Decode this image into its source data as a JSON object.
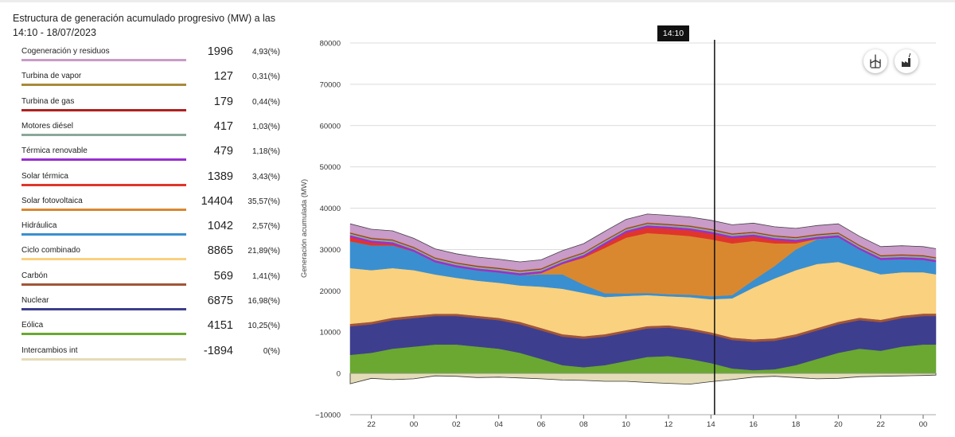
{
  "title": "Estructura de generación acumulado progresivo (MW) a las 14:10 - 18/07/2023",
  "tooltip_time": "14:10",
  "legend": [
    {
      "label": "Cogeneración y residuos",
      "value": "1996",
      "pct": "4,93(%)",
      "color": "#c99bc9"
    },
    {
      "label": "Turbina de vapor",
      "value": "127",
      "pct": "0,31(%)",
      "color": "#a88a3c"
    },
    {
      "label": "Turbina de gas",
      "value": "179",
      "pct": "0,44(%)",
      "color": "#b02020"
    },
    {
      "label": "Motores diésel",
      "value": "417",
      "pct": "1,03(%)",
      "color": "#8aa89a"
    },
    {
      "label": "Térmica renovable",
      "value": "479",
      "pct": "1,18(%)",
      "color": "#9a2fd0"
    },
    {
      "label": "Solar térmica",
      "value": "1389",
      "pct": "3,43(%)",
      "color": "#e0352c"
    },
    {
      "label": "Solar fotovoltaica",
      "value": "14404",
      "pct": "35,57(%)",
      "color": "#d98830"
    },
    {
      "label": "Hidráulica",
      "value": "1042",
      "pct": "2,57(%)",
      "color": "#3a8fd0"
    },
    {
      "label": "Ciclo combinado",
      "value": "8865",
      "pct": "21,89(%)",
      "color": "#f9d17f"
    },
    {
      "label": "Carbón",
      "value": "569",
      "pct": "1,41(%)",
      "color": "#a0553a"
    },
    {
      "label": "Nuclear",
      "value": "6875",
      "pct": "16,98(%)",
      "color": "#3e3e8e"
    },
    {
      "label": "Eólica",
      "value": "4151",
      "pct": "10,25(%)",
      "color": "#6aa832"
    },
    {
      "label": "Intercambios int",
      "value": "-1894",
      "pct": "0(%)",
      "color": "#e4dcb8"
    }
  ],
  "chart_data": {
    "type": "area",
    "stacked": true,
    "ylabel": "Generación acumulada (MW)",
    "ylim": [
      -10000,
      80000
    ],
    "yticks": [
      "80000",
      "70000",
      "60000",
      "50000",
      "40000",
      "30000",
      "20000",
      "10000",
      "0",
      "−10000"
    ],
    "xticks": [
      "22",
      "00",
      "02",
      "04",
      "06",
      "08",
      "10",
      "12",
      "14",
      "16",
      "18",
      "20",
      "22",
      "00",
      "02"
    ],
    "x_hours": [
      21,
      22,
      23,
      24,
      25,
      26,
      27,
      28,
      29,
      30,
      31,
      32,
      33,
      34,
      35,
      36,
      37,
      38,
      39,
      40,
      41,
      42,
      43,
      44,
      45,
      46,
      47,
      48,
      48.6
    ],
    "cursor_hour": 38.17,
    "series": [
      {
        "name": "Intercambios int",
        "color": "#e4dcb8",
        "values": [
          -2500,
          -1200,
          -1500,
          -1300,
          -600,
          -700,
          -1000,
          -900,
          -1100,
          -1300,
          -1600,
          -1700,
          -1900,
          -1900,
          -2200,
          -2400,
          -2600,
          -2000,
          -1500,
          -900,
          -700,
          -1000,
          -1300,
          -1200,
          -800,
          -700,
          -600,
          -500,
          -400
        ]
      },
      {
        "name": "Eólica",
        "color": "#6aa832",
        "values": [
          4500,
          5000,
          6000,
          6500,
          7000,
          7000,
          6500,
          6000,
          5000,
          3500,
          2000,
          1500,
          2000,
          3000,
          4000,
          4200,
          3500,
          2500,
          1200,
          800,
          1000,
          2000,
          3500,
          5000,
          6000,
          5500,
          6500,
          7000,
          7000
        ]
      },
      {
        "name": "Nuclear",
        "color": "#3e3e8e",
        "values": [
          6900,
          6900,
          6900,
          6900,
          6900,
          6900,
          6900,
          6900,
          6900,
          6900,
          6900,
          6900,
          6900,
          6900,
          6900,
          6900,
          6900,
          6900,
          6900,
          6900,
          6900,
          6900,
          6900,
          6900,
          6900,
          6900,
          6900,
          6900,
          6900
        ]
      },
      {
        "name": "Carbón",
        "color": "#a0553a",
        "values": [
          600,
          600,
          600,
          600,
          550,
          550,
          550,
          550,
          600,
          600,
          600,
          600,
          600,
          580,
          570,
          570,
          570,
          570,
          570,
          570,
          600,
          600,
          600,
          600,
          600,
          600,
          600,
          600,
          600
        ]
      },
      {
        "name": "Ciclo combinado",
        "color": "#f9d17f",
        "values": [
          13500,
          12500,
          12000,
          11000,
          9500,
          8700,
          8500,
          8500,
          8800,
          10000,
          11000,
          10500,
          9000,
          8300,
          7500,
          7000,
          7500,
          8000,
          9500,
          12500,
          14500,
          15500,
          15500,
          14500,
          12000,
          11000,
          10500,
          10000,
          9500
        ]
      },
      {
        "name": "Hidráulica",
        "color": "#3a8fd0",
        "values": [
          6500,
          6000,
          5500,
          4500,
          3000,
          2600,
          2500,
          2500,
          2500,
          3000,
          3500,
          2000,
          900,
          600,
          500,
          500,
          600,
          700,
          800,
          1800,
          3000,
          5000,
          6000,
          6000,
          4500,
          3500,
          3200,
          3000,
          3000
        ]
      },
      {
        "name": "Solar fotovoltaica",
        "color": "#d98830",
        "values": [
          0,
          0,
          0,
          0,
          0,
          0,
          0,
          0,
          0,
          300,
          2500,
          6500,
          11000,
          13500,
          14500,
          14500,
          14200,
          13800,
          12500,
          9500,
          5500,
          1500,
          100,
          0,
          0,
          0,
          0,
          0,
          0
        ]
      },
      {
        "name": "Solar térmica",
        "color": "#e0352c",
        "values": [
          1000,
          700,
          300,
          0,
          0,
          0,
          0,
          0,
          0,
          0,
          0,
          200,
          800,
          1200,
          1400,
          1400,
          1400,
          1400,
          1300,
          1100,
          800,
          400,
          0,
          0,
          0,
          0,
          0,
          0,
          0
        ]
      },
      {
        "name": "Térmica renovable",
        "color": "#9a2fd0",
        "values": [
          480,
          480,
          480,
          480,
          480,
          480,
          480,
          480,
          480,
          480,
          480,
          480,
          480,
          480,
          480,
          480,
          480,
          480,
          480,
          480,
          480,
          480,
          480,
          480,
          480,
          480,
          480,
          480,
          480
        ]
      },
      {
        "name": "Motores diésel",
        "color": "#8aa89a",
        "values": [
          420,
          420,
          420,
          420,
          420,
          420,
          420,
          420,
          420,
          420,
          420,
          420,
          420,
          420,
          420,
          420,
          420,
          420,
          420,
          420,
          420,
          420,
          420,
          420,
          420,
          420,
          420,
          420,
          420
        ]
      },
      {
        "name": "Turbina de gas",
        "color": "#b02020",
        "values": [
          180,
          180,
          180,
          180,
          180,
          180,
          180,
          180,
          180,
          180,
          180,
          180,
          180,
          180,
          180,
          180,
          180,
          180,
          180,
          180,
          180,
          180,
          180,
          180,
          180,
          180,
          180,
          180,
          180
        ]
      },
      {
        "name": "Turbina de vapor",
        "color": "#a88a3c",
        "values": [
          130,
          130,
          130,
          130,
          130,
          130,
          130,
          130,
          130,
          130,
          130,
          130,
          130,
          130,
          130,
          130,
          130,
          130,
          130,
          130,
          130,
          130,
          130,
          130,
          130,
          130,
          130,
          130,
          130
        ]
      },
      {
        "name": "Cogeneración y residuos",
        "color": "#c99bc9",
        "values": [
          2000,
          2000,
          2000,
          2000,
          2000,
          2000,
          2000,
          2000,
          2000,
          2000,
          2000,
          2000,
          2000,
          2000,
          2000,
          2000,
          2000,
          2000,
          2000,
          2000,
          2000,
          2000,
          2000,
          2000,
          2000,
          2000,
          2000,
          2000,
          2000
        ]
      }
    ]
  },
  "icons": {
    "wind": "wind-turbine-icon",
    "factory": "factory-icon"
  }
}
